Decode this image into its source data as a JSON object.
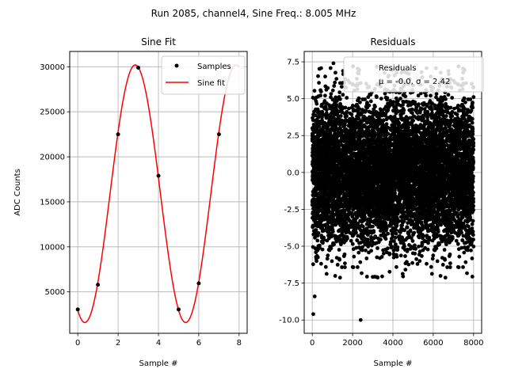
{
  "suptitle": "Run 2085, channel4, Sine Freq.: 8.005 MHz",
  "chart_data": [
    {
      "type": "line",
      "title": "Sine Fit",
      "xlabel": "Sample #",
      "ylabel": "ADC Counts",
      "xlim": [
        -0.4,
        8.4
      ],
      "ylim": [
        400,
        31700
      ],
      "xticks": [
        0,
        2,
        4,
        6,
        8
      ],
      "yticks": [
        5000,
        10000,
        15000,
        20000,
        25000,
        30000
      ],
      "grid": true,
      "legend_position": "top-right",
      "series": [
        {
          "name": "Samples",
          "kind": "scatter",
          "color": "#000000",
          "x": [
            0,
            1,
            2,
            3,
            4,
            5,
            6,
            7
          ],
          "y": [
            3050,
            5800,
            22500,
            29900,
            17900,
            3050,
            5950,
            22500
          ]
        },
        {
          "name": "Sine fit",
          "kind": "line",
          "color": "#ff0000",
          "function": {
            "amplitude": 14300,
            "offset": 15900,
            "period": 5,
            "peak_x": 2.85,
            "x_range": [
              0,
              8
            ]
          }
        }
      ]
    },
    {
      "type": "scatter",
      "title": "Residuals",
      "xlabel": "Sample #",
      "ylabel": "",
      "xlim": [
        -400,
        8400
      ],
      "ylim": [
        -10.9,
        8.2
      ],
      "xticks": [
        0,
        2000,
        4000,
        6000,
        8000
      ],
      "yticks": [
        -10.0,
        -7.5,
        -5.0,
        -2.5,
        0.0,
        2.5,
        5.0,
        7.5
      ],
      "grid": true,
      "legend_position": "top-right",
      "legend_entries": [
        "Residuals",
        "μ = -0.0, σ = 2.42"
      ],
      "color": "#000000",
      "n_points": 8000,
      "mu": -0.0,
      "sigma": 2.42,
      "outliers": [
        {
          "x": 50,
          "y": -9.6
        },
        {
          "x": 120,
          "y": -8.4
        },
        {
          "x": 2400,
          "y": -10.0
        },
        {
          "x": 1050,
          "y": 7.4
        },
        {
          "x": 2300,
          "y": 6.7
        }
      ]
    }
  ]
}
